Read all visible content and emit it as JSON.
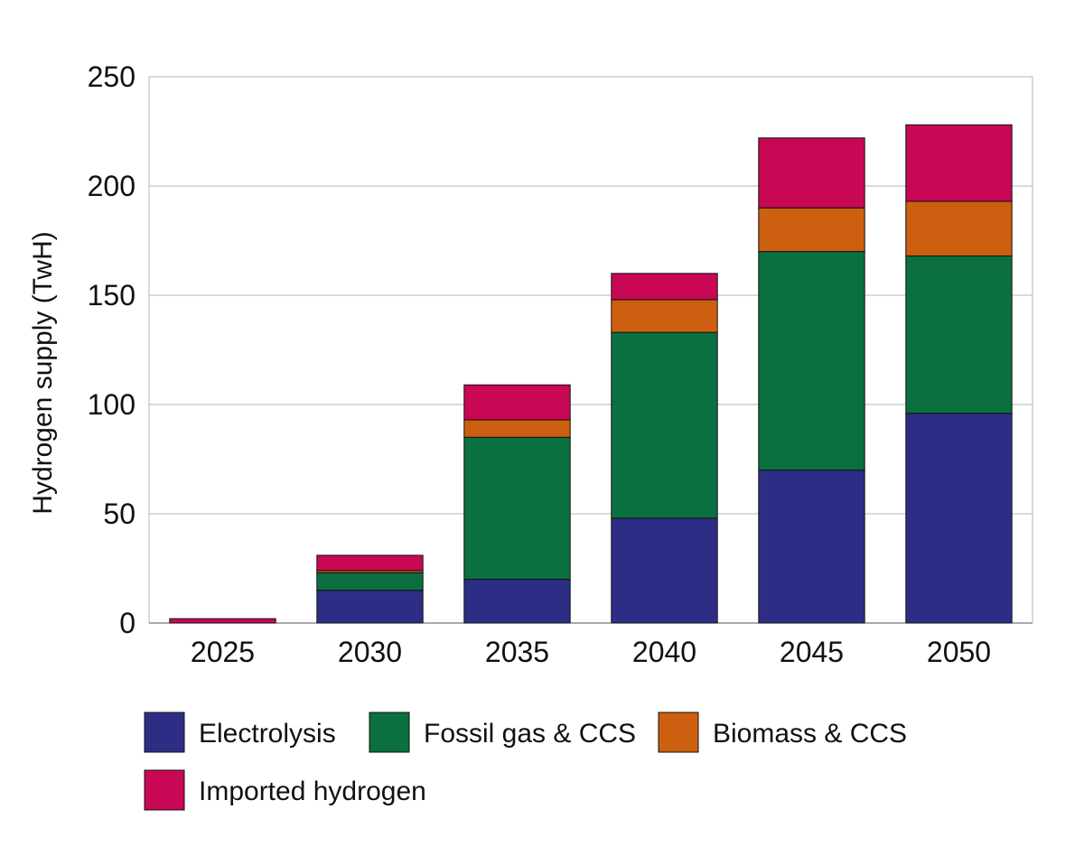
{
  "chart_data": {
    "type": "bar",
    "stacked": true,
    "categories": [
      "2025",
      "2030",
      "2035",
      "2040",
      "2045",
      "2050"
    ],
    "series": [
      {
        "name": "Electrolysis",
        "color": "#2e2d85",
        "values": [
          0,
          15,
          20,
          48,
          70,
          96
        ]
      },
      {
        "name": "Fossil gas & CCS",
        "color": "#0a7040",
        "values": [
          0,
          8,
          65,
          85,
          100,
          72
        ]
      },
      {
        "name": "Biomass & CCS",
        "color": "#cc6010",
        "values": [
          0,
          1,
          8,
          15,
          20,
          25
        ]
      },
      {
        "name": "Imported hydrogen",
        "color": "#c80855",
        "values": [
          2,
          7,
          16,
          12,
          32,
          35
        ]
      }
    ],
    "title": "",
    "xlabel": "",
    "ylabel": "Hydrogen supply (TwH)",
    "ylim": [
      0,
      250
    ],
    "yticks": [
      "0",
      "50",
      "100",
      "150",
      "200",
      "250"
    ],
    "grid": true,
    "legend_position": "bottom"
  }
}
